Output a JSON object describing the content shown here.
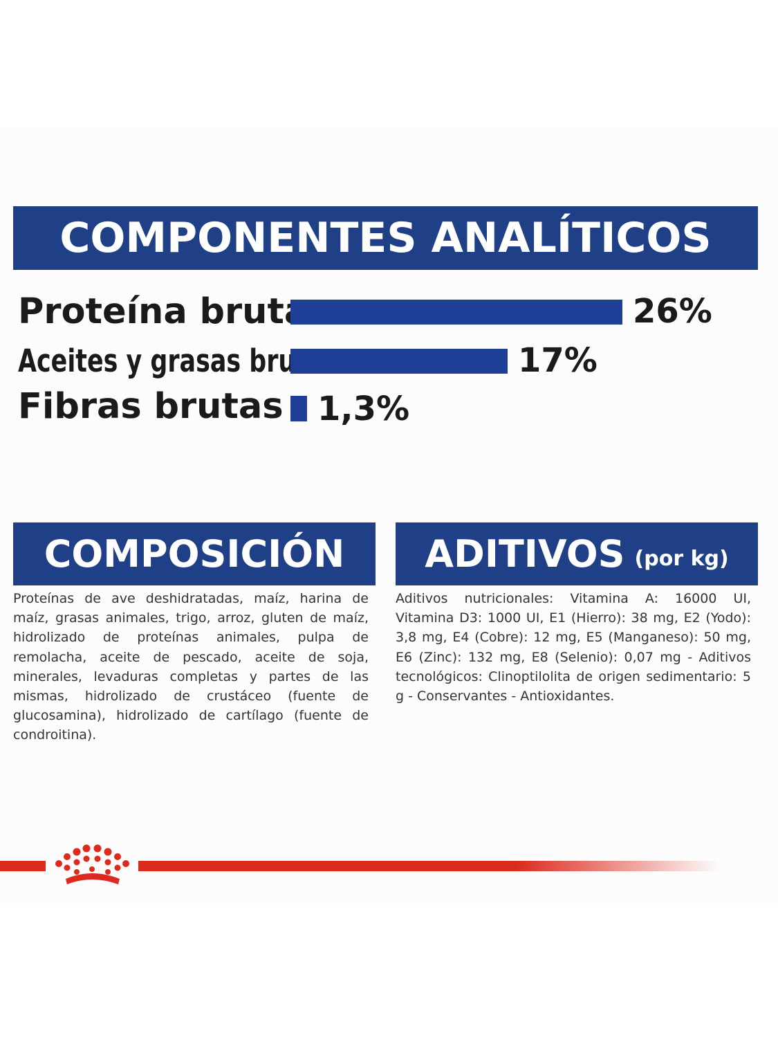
{
  "analytic": {
    "title": "COMPONENTES ANALÍTICOS",
    "rows": [
      {
        "label": "Proteína bruta",
        "value_text": "26%",
        "value": 26
      },
      {
        "label": "Aceites y grasas brutos",
        "value_text": "17%",
        "value": 17
      },
      {
        "label": "Fibras brutas",
        "value_text": "1,3%",
        "value": 1.3
      }
    ]
  },
  "composition": {
    "title": "COMPOSICIÓN",
    "text": "Proteínas de ave deshidratadas, maíz, harina de maíz, grasas animales, trigo, arroz, gluten de maíz, hidrolizado de proteínas animales, pulpa de remolacha, aceite de pescado, aceite de soja, minerales, levaduras completas y partes de las mismas, hidrolizado de crustáceo (fuente de glucosamina), hidrolizado de cartílago (fuente de condroitina)."
  },
  "additives": {
    "title": "ADITIVOS",
    "unit": "(por kg)",
    "text": "Aditivos nutricionales: Vitamina A: 16000 UI, Vitamina D3: 1000 UI, E1 (Hierro): 38 mg, E2 (Yodo): 3,8 mg, E4 (Cobre): 12 mg, E5 (Manganeso): 50 mg, E6 (Zinc): 132 mg, E8 (Selenio): 0,07 mg - Aditivos tecnológicos: Clinoptilolita de origen sedimentario: 5 g - Conservantes - Antioxidantes."
  },
  "colors": {
    "banner": "#1f4086",
    "bar": "#1f3e96",
    "brand_red": "#dc2a1e"
  },
  "icons": {
    "brand": "royal-crown-icon"
  }
}
